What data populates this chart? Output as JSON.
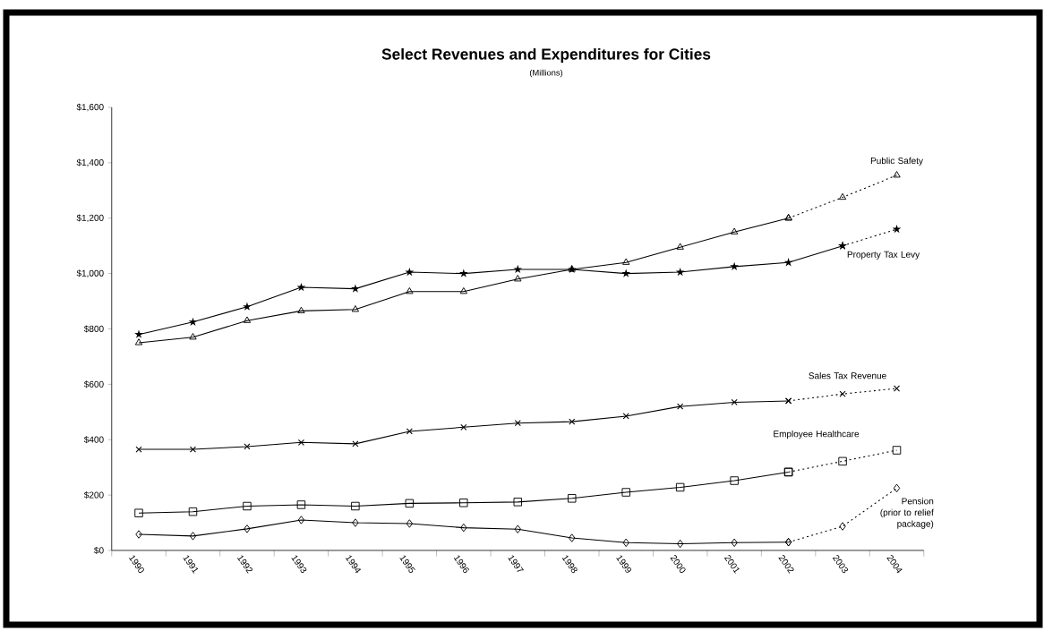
{
  "chart_data": {
    "type": "line",
    "title": "Select Revenues and Expenditures for Cities",
    "subtitle": "(Millions)",
    "categories": [
      "1990",
      "1991",
      "1992",
      "1993",
      "1994",
      "1995",
      "1996",
      "1997",
      "1998",
      "1999",
      "2000",
      "2001",
      "2002",
      "2003",
      "2004"
    ],
    "ylim": [
      0,
      1600
    ],
    "yticks": [
      {
        "value": 0,
        "label": "$0"
      },
      {
        "value": 200,
        "label": "$200"
      },
      {
        "value": 400,
        "label": "$400"
      },
      {
        "value": 600,
        "label": "$600"
      },
      {
        "value": 800,
        "label": "$800"
      },
      {
        "value": 1000,
        "label": "$1,000"
      },
      {
        "value": 1200,
        "label": "$1,200"
      },
      {
        "value": 1400,
        "label": "$1,400"
      },
      {
        "value": 1600,
        "label": "$1,600"
      }
    ],
    "grid": false,
    "legend": false,
    "series": [
      {
        "color": "#000000",
        "marker": "triangle",
        "line_style": "solid",
        "values": [
          750,
          770,
          830,
          865,
          870,
          935,
          935,
          980,
          1015,
          1040,
          1095,
          1150,
          1200,
          null,
          null
        ]
      },
      {
        "name": "Public Safety",
        "color": "#000000",
        "marker": "triangle",
        "line_style": "dotted",
        "values": [
          null,
          null,
          null,
          null,
          null,
          null,
          null,
          null,
          null,
          null,
          null,
          null,
          1200,
          1275,
          1355
        ]
      },
      {
        "color": "#000000",
        "marker": "star",
        "line_style": "solid",
        "values": [
          780,
          825,
          880,
          950,
          945,
          1005,
          1000,
          1015,
          1015,
          1000,
          1005,
          1025,
          1040,
          1100,
          null
        ]
      },
      {
        "name": "Property Tax Levy",
        "color": "#000000",
        "marker": "star",
        "line_style": "dotted",
        "values": [
          null,
          null,
          null,
          null,
          null,
          null,
          null,
          null,
          null,
          null,
          null,
          null,
          null,
          1100,
          1160
        ]
      },
      {
        "color": "#000000",
        "marker": "cross",
        "line_style": "solid",
        "values": [
          365,
          365,
          375,
          390,
          385,
          430,
          445,
          460,
          465,
          485,
          520,
          535,
          540,
          null,
          null
        ]
      },
      {
        "name": "Sales Tax Revenue",
        "color": "#000000",
        "marker": "cross",
        "line_style": "dotted",
        "values": [
          null,
          null,
          null,
          null,
          null,
          null,
          null,
          null,
          null,
          null,
          null,
          null,
          540,
          565,
          585
        ]
      },
      {
        "color": "#000000",
        "marker": "square",
        "line_style": "solid",
        "values": [
          135,
          140,
          160,
          165,
          160,
          170,
          172,
          175,
          188,
          210,
          228,
          252,
          283,
          null,
          null
        ]
      },
      {
        "name": "Employee Healthcare",
        "color": "#000000",
        "marker": "square",
        "line_style": "dotted",
        "values": [
          null,
          null,
          null,
          null,
          null,
          null,
          null,
          null,
          null,
          null,
          null,
          null,
          283,
          322,
          362
        ]
      },
      {
        "color": "#000000",
        "marker": "diamond",
        "line_style": "solid",
        "values": [
          58,
          52,
          78,
          110,
          100,
          97,
          82,
          77,
          45,
          28,
          24,
          28,
          30,
          null,
          null
        ]
      },
      {
        "name": "Pension (prior to relief package)",
        "color": "#000000",
        "marker": "diamond",
        "line_style": "dotted",
        "values": [
          null,
          null,
          null,
          null,
          null,
          null,
          null,
          null,
          null,
          null,
          null,
          null,
          30,
          87,
          225
        ]
      }
    ]
  }
}
